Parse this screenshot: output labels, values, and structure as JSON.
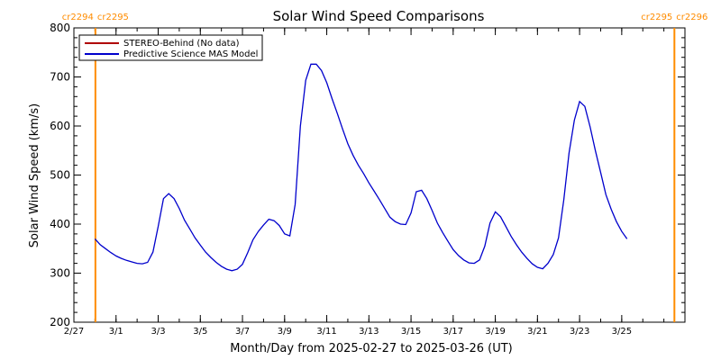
{
  "chart_data": {
    "type": "line",
    "title": "Solar Wind Speed Comparisons",
    "xlabel": "Month/Day from 2025-02-27 to 2025-03-26 (UT)",
    "ylabel": "Solar Wind Speed (km/s)",
    "ylim": [
      200,
      800
    ],
    "yticks": [
      "200",
      "300",
      "400",
      "500",
      "600",
      "700",
      "800"
    ],
    "xlim": [
      "2025-02-27",
      "2025-03-28"
    ],
    "xticks": [
      {
        "date": "2025-02-27",
        "label": "2/27"
      },
      {
        "date": "2025-03-01",
        "label": "3/1"
      },
      {
        "date": "2025-03-03",
        "label": "3/3"
      },
      {
        "date": "2025-03-05",
        "label": "3/5"
      },
      {
        "date": "2025-03-07",
        "label": "3/7"
      },
      {
        "date": "2025-03-09",
        "label": "3/9"
      },
      {
        "date": "2025-03-11",
        "label": "3/11"
      },
      {
        "date": "2025-03-13",
        "label": "3/13"
      },
      {
        "date": "2025-03-15",
        "label": "3/15"
      },
      {
        "date": "2025-03-17",
        "label": "3/17"
      },
      {
        "date": "2025-03-19",
        "label": "3/19"
      },
      {
        "date": "2025-03-21",
        "label": "3/21"
      },
      {
        "date": "2025-03-23",
        "label": "3/23"
      },
      {
        "date": "2025-03-25",
        "label": "3/25"
      }
    ],
    "legend_position": "top-left",
    "carrington_markers": [
      {
        "date": "2025-02-28T00:30",
        "left": "cr2294",
        "right": "cr2295"
      },
      {
        "date": "2025-03-27T12:00",
        "left": "cr2295",
        "right": "cr2296"
      }
    ],
    "marker_color": "#ff8c00",
    "series": [
      {
        "name": "STEREO-Behind (No data)",
        "color": "#b00000",
        "points": []
      },
      {
        "name": "Predictive Science MAS Model",
        "color": "#0000cc",
        "points": [
          [
            "2025-02-28T00:00",
            370
          ],
          [
            "2025-02-28T06:00",
            358
          ],
          [
            "2025-02-28T12:00",
            350
          ],
          [
            "2025-02-28T18:00",
            342
          ],
          [
            "2025-03-01T00:00",
            335
          ],
          [
            "2025-03-01T06:00",
            330
          ],
          [
            "2025-03-01T12:00",
            326
          ],
          [
            "2025-03-01T18:00",
            323
          ],
          [
            "2025-03-02T00:00",
            320
          ],
          [
            "2025-03-02T06:00",
            319
          ],
          [
            "2025-03-02T12:00",
            322
          ],
          [
            "2025-03-02T18:00",
            343
          ],
          [
            "2025-03-03T00:00",
            395
          ],
          [
            "2025-03-03T06:00",
            452
          ],
          [
            "2025-03-03T12:00",
            462
          ],
          [
            "2025-03-03T18:00",
            452
          ],
          [
            "2025-03-04T00:00",
            432
          ],
          [
            "2025-03-04T06:00",
            408
          ],
          [
            "2025-03-04T12:00",
            390
          ],
          [
            "2025-03-04T18:00",
            372
          ],
          [
            "2025-03-05T00:00",
            357
          ],
          [
            "2025-03-05T06:00",
            343
          ],
          [
            "2025-03-05T12:00",
            332
          ],
          [
            "2025-03-05T18:00",
            322
          ],
          [
            "2025-03-06T00:00",
            314
          ],
          [
            "2025-03-06T06:00",
            308
          ],
          [
            "2025-03-06T12:00",
            305
          ],
          [
            "2025-03-06T18:00",
            308
          ],
          [
            "2025-03-07T00:00",
            318
          ],
          [
            "2025-03-07T06:00",
            342
          ],
          [
            "2025-03-07T12:00",
            368
          ],
          [
            "2025-03-07T18:00",
            385
          ],
          [
            "2025-03-08T00:00",
            398
          ],
          [
            "2025-03-08T06:00",
            410
          ],
          [
            "2025-03-08T12:00",
            407
          ],
          [
            "2025-03-08T18:00",
            397
          ],
          [
            "2025-03-09T00:00",
            380
          ],
          [
            "2025-03-09T06:00",
            376
          ],
          [
            "2025-03-09T12:00",
            440
          ],
          [
            "2025-03-09T18:00",
            600
          ],
          [
            "2025-03-10T00:00",
            693
          ],
          [
            "2025-03-10T06:00",
            726
          ],
          [
            "2025-03-10T12:00",
            726
          ],
          [
            "2025-03-10T18:00",
            713
          ],
          [
            "2025-03-11T00:00",
            688
          ],
          [
            "2025-03-11T06:00",
            656
          ],
          [
            "2025-03-11T12:00",
            626
          ],
          [
            "2025-03-11T18:00",
            594
          ],
          [
            "2025-03-12T00:00",
            564
          ],
          [
            "2025-03-12T06:00",
            540
          ],
          [
            "2025-03-12T12:00",
            520
          ],
          [
            "2025-03-12T18:00",
            503
          ],
          [
            "2025-03-13T00:00",
            484
          ],
          [
            "2025-03-13T06:00",
            467
          ],
          [
            "2025-03-13T12:00",
            450
          ],
          [
            "2025-03-13T18:00",
            432
          ],
          [
            "2025-03-14T00:00",
            414
          ],
          [
            "2025-03-14T06:00",
            405
          ],
          [
            "2025-03-14T12:00",
            400
          ],
          [
            "2025-03-14T18:00",
            399
          ],
          [
            "2025-03-15T00:00",
            423
          ],
          [
            "2025-03-15T06:00",
            466
          ],
          [
            "2025-03-15T12:00",
            469
          ],
          [
            "2025-03-15T18:00",
            452
          ],
          [
            "2025-03-16T00:00",
            428
          ],
          [
            "2025-03-16T06:00",
            402
          ],
          [
            "2025-03-16T12:00",
            383
          ],
          [
            "2025-03-16T18:00",
            365
          ],
          [
            "2025-03-17T00:00",
            348
          ],
          [
            "2025-03-17T06:00",
            336
          ],
          [
            "2025-03-17T12:00",
            327
          ],
          [
            "2025-03-17T18:00",
            321
          ],
          [
            "2025-03-18T00:00",
            320
          ],
          [
            "2025-03-18T06:00",
            327
          ],
          [
            "2025-03-18T12:00",
            355
          ],
          [
            "2025-03-18T18:00",
            402
          ],
          [
            "2025-03-19T00:00",
            425
          ],
          [
            "2025-03-19T06:00",
            415
          ],
          [
            "2025-03-19T12:00",
            395
          ],
          [
            "2025-03-19T18:00",
            375
          ],
          [
            "2025-03-20T00:00",
            358
          ],
          [
            "2025-03-20T06:00",
            343
          ],
          [
            "2025-03-20T12:00",
            330
          ],
          [
            "2025-03-20T18:00",
            319
          ],
          [
            "2025-03-21T00:00",
            312
          ],
          [
            "2025-03-21T06:00",
            309
          ],
          [
            "2025-03-21T12:00",
            320
          ],
          [
            "2025-03-21T18:00",
            338
          ],
          [
            "2025-03-22T00:00",
            372
          ],
          [
            "2025-03-22T06:00",
            450
          ],
          [
            "2025-03-22T12:00",
            545
          ],
          [
            "2025-03-22T18:00",
            612
          ],
          [
            "2025-03-23T00:00",
            650
          ],
          [
            "2025-03-23T06:00",
            640
          ],
          [
            "2025-03-23T12:00",
            598
          ],
          [
            "2025-03-23T18:00",
            550
          ],
          [
            "2025-03-24T00:00",
            505
          ],
          [
            "2025-03-24T06:00",
            460
          ],
          [
            "2025-03-24T12:00",
            430
          ],
          [
            "2025-03-24T18:00",
            405
          ],
          [
            "2025-03-25T00:00",
            385
          ],
          [
            "2025-03-25T06:00",
            370
          ]
        ]
      }
    ]
  }
}
